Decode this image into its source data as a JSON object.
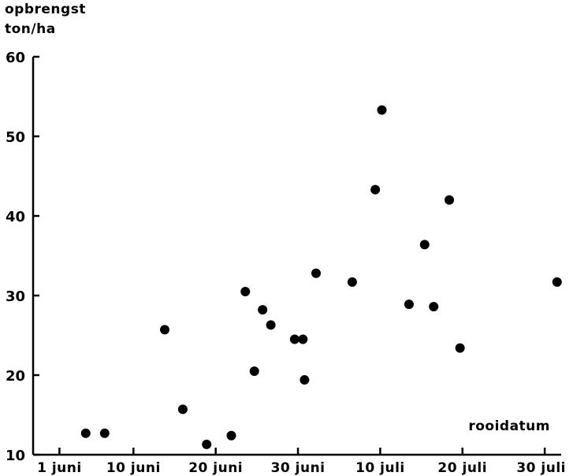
{
  "chart_data": {
    "type": "scatter",
    "ylabel": [
      "opbrengst",
      "ton/ha"
    ],
    "xlabel": "rooidatum",
    "xlim": [
      -3.2,
      61
    ],
    "ylim": [
      10,
      60
    ],
    "yticks": [
      10,
      20,
      30,
      40,
      50,
      60
    ],
    "xticks": [
      {
        "label": "1 juni",
        "day": 0
      },
      {
        "label": "10 juni",
        "day": 9
      },
      {
        "label": "20 juni",
        "day": 19
      },
      {
        "label": "30 juni",
        "day": 29
      },
      {
        "label": "10 juli",
        "day": 39
      },
      {
        "label": "20 juli",
        "day": 49
      },
      {
        "label": "30 juli",
        "day": 59
      }
    ],
    "points": [
      {
        "x": 3.2,
        "y": 12.7
      },
      {
        "x": 5.5,
        "y": 12.7
      },
      {
        "x": 12.8,
        "y": 25.7
      },
      {
        "x": 15.0,
        "y": 15.7
      },
      {
        "x": 17.9,
        "y": 11.3
      },
      {
        "x": 20.9,
        "y": 12.4
      },
      {
        "x": 22.6,
        "y": 30.5
      },
      {
        "x": 23.7,
        "y": 20.5
      },
      {
        "x": 24.7,
        "y": 28.2
      },
      {
        "x": 25.7,
        "y": 26.3
      },
      {
        "x": 28.6,
        "y": 24.5
      },
      {
        "x": 29.6,
        "y": 24.5
      },
      {
        "x": 29.8,
        "y": 19.4
      },
      {
        "x": 31.2,
        "y": 32.8
      },
      {
        "x": 35.6,
        "y": 31.7
      },
      {
        "x": 38.4,
        "y": 43.3
      },
      {
        "x": 39.2,
        "y": 53.3
      },
      {
        "x": 42.5,
        "y": 28.9
      },
      {
        "x": 44.4,
        "y": 36.4
      },
      {
        "x": 45.5,
        "y": 28.6
      },
      {
        "x": 47.4,
        "y": 42.0
      },
      {
        "x": 48.7,
        "y": 23.4
      },
      {
        "x": 60.5,
        "y": 31.7
      }
    ]
  }
}
